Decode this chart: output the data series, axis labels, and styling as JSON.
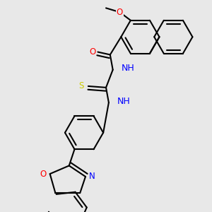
{
  "background_color": "#e8e8e8",
  "atom_colors": {
    "O": "#ff0000",
    "N": "#0000ff",
    "S": "#cccc00",
    "C": "#000000",
    "H": "#008080"
  },
  "bond_color": "#000000",
  "bond_width": 1.5,
  "font_size": 8.5
}
